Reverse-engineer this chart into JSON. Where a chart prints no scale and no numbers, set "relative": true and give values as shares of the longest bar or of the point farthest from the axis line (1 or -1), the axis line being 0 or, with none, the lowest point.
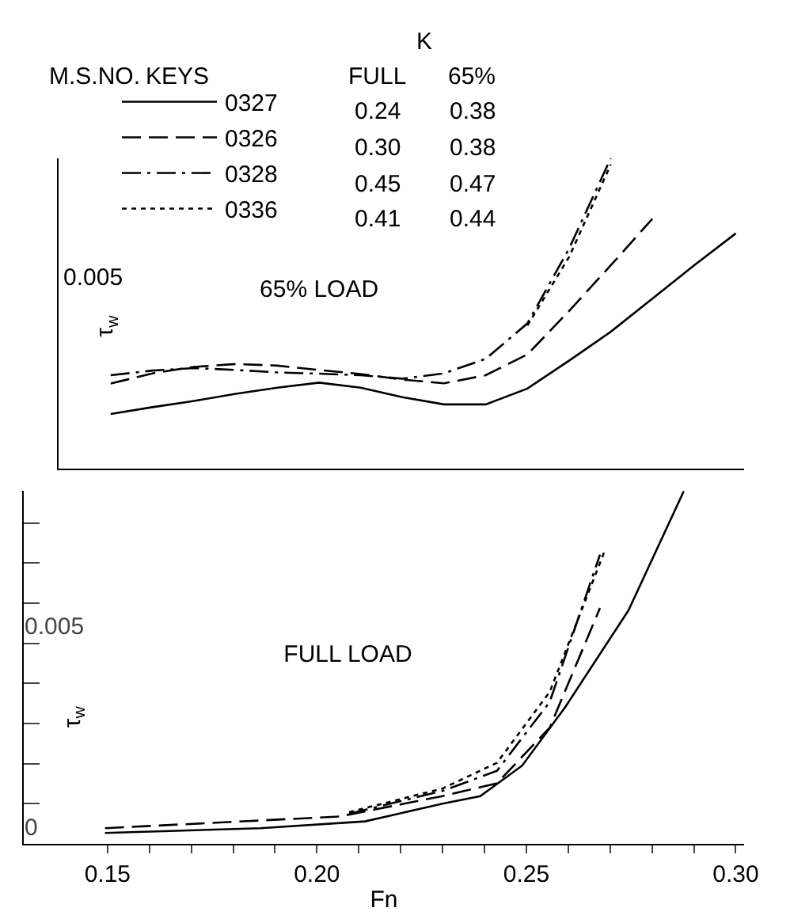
{
  "chart_data": [
    {
      "type": "line",
      "title": "65% LOAD",
      "ylabel": "τ$_{w}$",
      "relative": true,
      "categories": [
        null,
        null,
        null,
        null,
        null,
        null,
        null,
        null,
        null,
        null,
        null,
        null,
        null,
        null,
        null,
        null
      ],
      "grid": false,
      "legend": "top left",
      "annotations": [
        "K",
        "M.S.NO.",
        "KEYS",
        "FULL",
        "65%",
        "0.24",
        "0.38",
        "0.30",
        "0.38",
        "0.45",
        "0.47",
        "0.41",
        "0.44",
        "0.005"
      ],
      "series": [
        {
          "name": "0327",
          "color": "#000000",
          "line_style": "solid",
          "values": [
            0.176,
            0.198,
            0.218,
            0.241,
            0.261,
            0.277,
            0.261,
            0.23,
            0.207,
            0.207,
            0.258,
            0.348,
            0.441,
            0.548,
            0.655,
            0.758
          ]
        },
        {
          "name": "0326",
          "color": "#000000",
          "line_style": "dashed",
          "values": [
            0.274,
            0.307,
            0.328,
            0.337,
            0.332,
            0.318,
            0.305,
            0.287,
            0.275,
            0.301,
            0.368,
            0.508,
            0.655,
            0.805,
            null,
            null
          ]
        },
        {
          "name": "0328",
          "color": "#000000",
          "line_style": "dashdot",
          "values": [
            0.301,
            0.316,
            0.324,
            0.318,
            0.31,
            0.306,
            0.301,
            0.29,
            0.307,
            0.354,
            0.468,
            0.709,
            1,
            null,
            null,
            null
          ]
        },
        {
          "name": "0336",
          "color": "#000000",
          "line_style": "dotted",
          "values": [
            null,
            null,
            null,
            null,
            null,
            null,
            null,
            null,
            null,
            null,
            0.461,
            0.682,
            0.98,
            null,
            null,
            null
          ]
        }
      ]
    },
    {
      "type": "line",
      "title": "FULL LOAD",
      "xlabel": "Fn",
      "ylabel": "τ$_{w}$",
      "xlim": [
        0.13,
        0.302
      ],
      "ylim": [
        0,
        0.0088
      ],
      "xticks": [
        {
          "value": 0.15,
          "label": "0.15"
        },
        {
          "value": 0.16,
          "label": null
        },
        {
          "value": 0.17,
          "label": null
        },
        {
          "value": 0.18,
          "label": null
        },
        {
          "value": 0.19,
          "label": null
        },
        {
          "value": 0.2,
          "label": "0.20"
        },
        {
          "value": 0.21,
          "label": null
        },
        {
          "value": 0.22,
          "label": null
        },
        {
          "value": 0.23,
          "label": null
        },
        {
          "value": 0.24,
          "label": null
        },
        {
          "value": 0.25,
          "label": "0.25"
        },
        {
          "value": 0.26,
          "label": null
        },
        {
          "value": 0.27,
          "label": null
        },
        {
          "value": 0.28,
          "label": null
        },
        {
          "value": 0.29,
          "label": null
        },
        {
          "value": 0.3,
          "label": "0.30"
        }
      ],
      "yticks": [
        0,
        {
          "value": 0.001,
          "label": null
        },
        {
          "value": 0.002,
          "label": null
        },
        {
          "value": 0.003,
          "label": null
        },
        {
          "value": 0.004,
          "label": null
        },
        {
          "value": 0.005,
          "label": "0.005"
        },
        {
          "value": 0.006,
          "label": null
        },
        {
          "value": 0.007,
          "label": null
        },
        {
          "value": 0.008,
          "label": null
        }
      ],
      "grid": false,
      "series": [
        {
          "color": "#000000",
          "line_style": "solid",
          "x": [
            0.1494,
            0.1865,
            0.2115,
            0.23,
            0.239,
            0.249,
            0.2593,
            0.2744,
            0.2876
          ],
          "values": [
            0.00027,
            0.00039,
            0.00056,
            0.001,
            0.00119,
            0.00195,
            0.00341,
            0.00582,
            0.00879
          ]
        },
        {
          "color": "#000000",
          "line_style": "dashed",
          "x": [
            0.1494,
            0.2053,
            0.23,
            0.243,
            0.2556,
            0.2676
          ],
          "values": [
            0.00039,
            0.00068,
            0.00119,
            0.00151,
            0.0029,
            0.00588
          ]
        },
        {
          "color": "#000000",
          "line_style": "dashdot",
          "x": [
            0.2077,
            0.23,
            0.243,
            0.2556,
            0.2676
          ],
          "values": [
            0.00075,
            0.00132,
            0.00182,
            0.00354,
            0.00721
          ]
        },
        {
          "color": "#000000",
          "line_style": "dotted",
          "x": [
            0.2077,
            0.23,
            0.243,
            0.2556,
            0.2686
          ],
          "values": [
            0.00079,
            0.00138,
            0.00202,
            0.00379,
            0.00727
          ]
        }
      ]
    }
  ]
}
